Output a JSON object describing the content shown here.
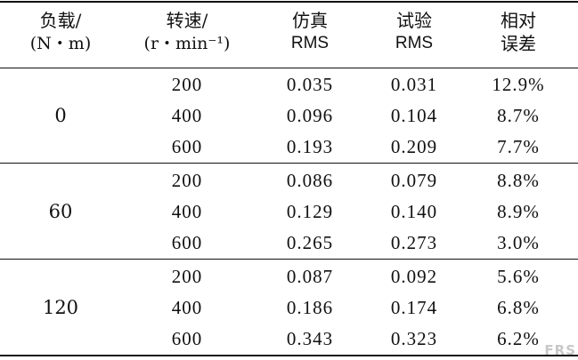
{
  "headers": {
    "load": [
      "负载/",
      "(N・m)"
    ],
    "speed": [
      "转速/",
      "(r・min⁻¹)"
    ],
    "sim": [
      "仿真",
      "RMS"
    ],
    "test": [
      "试验",
      "RMS"
    ],
    "err": [
      "相对",
      "误差"
    ]
  },
  "groups": [
    {
      "load": "0",
      "rows": [
        {
          "speed": "200",
          "sim": "0.035",
          "test": "0.031",
          "err": "12.9%"
        },
        {
          "speed": "400",
          "sim": "0.096",
          "test": "0.104",
          "err": "8.7%"
        },
        {
          "speed": "600",
          "sim": "0.193",
          "test": "0.209",
          "err": "7.7%"
        }
      ]
    },
    {
      "load": "60",
      "rows": [
        {
          "speed": "200",
          "sim": "0.086",
          "test": "0.079",
          "err": "8.8%"
        },
        {
          "speed": "400",
          "sim": "0.129",
          "test": "0.140",
          "err": "8.9%"
        },
        {
          "speed": "600",
          "sim": "0.265",
          "test": "0.273",
          "err": "3.0%"
        }
      ]
    },
    {
      "load": "120",
      "rows": [
        {
          "speed": "200",
          "sim": "0.087",
          "test": "0.092",
          "err": "5.6%"
        },
        {
          "speed": "400",
          "sim": "0.186",
          "test": "0.174",
          "err": "6.8%"
        },
        {
          "speed": "600",
          "sim": "0.343",
          "test": "0.323",
          "err": "6.2%"
        }
      ]
    }
  ],
  "watermark": "FRS"
}
